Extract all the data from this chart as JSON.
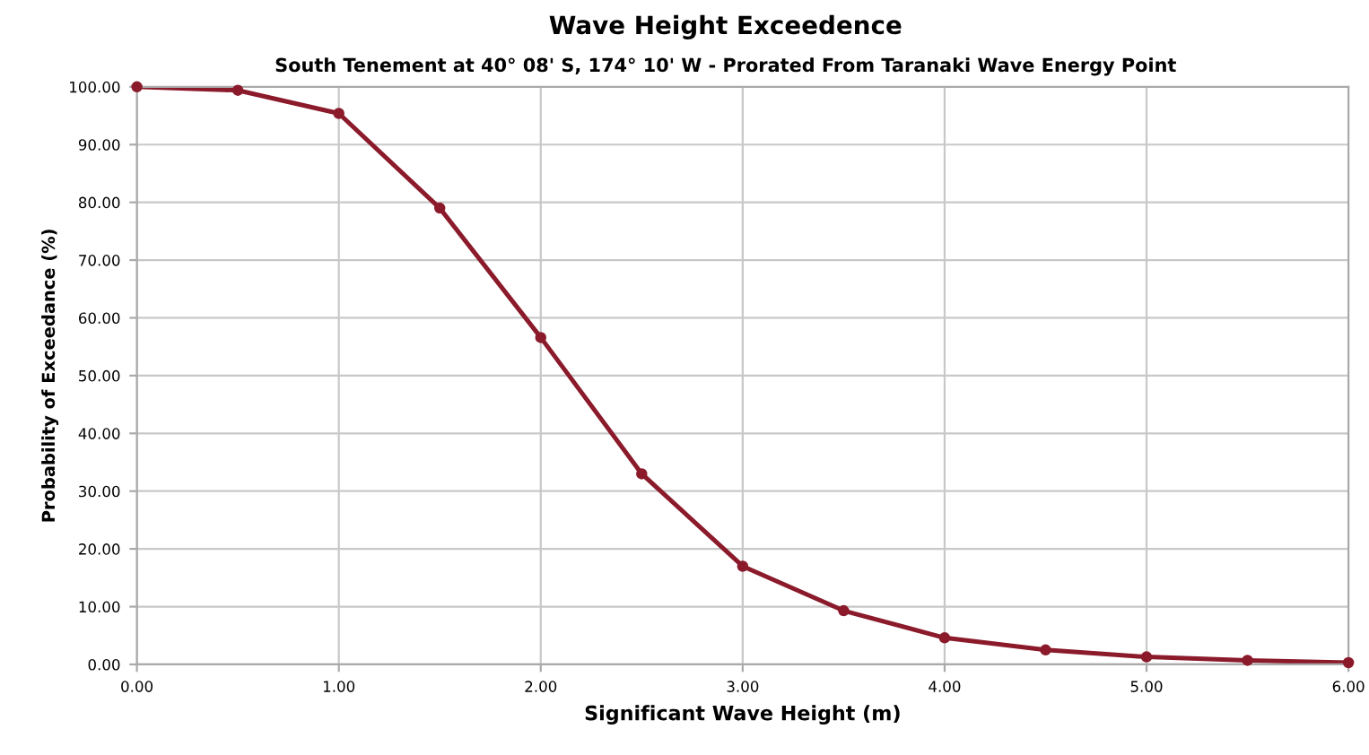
{
  "chart_data": {
    "type": "line",
    "title": "Wave Height Exceedence",
    "subtitle": "South Tenement at 40° 08' S, 174° 10' W - Prorated From Taranaki Wave Energy Point",
    "xlabel": "Significant Wave Height (m)",
    "ylabel": "Probability of Exceedance (%)",
    "x": [
      0,
      0.5,
      1.0,
      1.5,
      2.0,
      2.5,
      3.0,
      3.5,
      4.0,
      4.5,
      5.0,
      5.5,
      6.0
    ],
    "series": [
      {
        "color": "#8b1a2b",
        "values": [
          100,
          99.4,
          95.4,
          79,
          56.6,
          33,
          17,
          9.3,
          4.6,
          2.5,
          1.3,
          0.7,
          0.3
        ]
      }
    ],
    "xlim": [
      0,
      6
    ],
    "ylim": [
      0,
      100
    ],
    "xticks": [
      {
        "value": 0,
        "label": "0.00"
      },
      {
        "value": 1,
        "label": "1.00"
      },
      {
        "value": 2,
        "label": "2.00"
      },
      {
        "value": 3,
        "label": "3.00"
      },
      {
        "value": 4,
        "label": "4.00"
      },
      {
        "value": 5,
        "label": "5.00"
      },
      {
        "value": 6,
        "label": "6.00"
      }
    ],
    "yticks": [
      {
        "value": 0,
        "label": "0.00"
      },
      {
        "value": 10,
        "label": "10.00"
      },
      {
        "value": 20,
        "label": "20.00"
      },
      {
        "value": 30,
        "label": "30.00"
      },
      {
        "value": 40,
        "label": "40.00"
      },
      {
        "value": 50,
        "label": "50.00"
      },
      {
        "value": 60,
        "label": "60.00"
      },
      {
        "value": 70,
        "label": "70.00"
      },
      {
        "value": 80,
        "label": "80.00"
      },
      {
        "value": 90,
        "label": "90.00"
      },
      {
        "value": 100,
        "label": "100.00"
      }
    ],
    "grid": true,
    "marker": "circle",
    "line_style": "solid"
  }
}
